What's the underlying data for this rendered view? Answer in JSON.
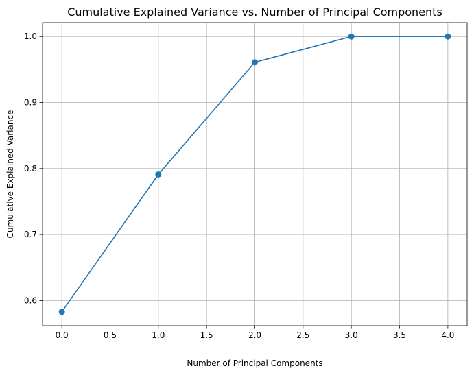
{
  "chart_data": {
    "type": "line",
    "title": "Cumulative Explained Variance vs. Number of Principal Components",
    "xlabel": "Number of Principal Components",
    "ylabel": "Cumulative Explained Variance",
    "x": [
      0,
      1,
      2,
      3,
      4
    ],
    "series": [
      {
        "values": [
          0.583,
          0.791,
          0.961,
          1.0,
          1.0
        ],
        "color": "#1f77b4",
        "marker": "circle"
      }
    ],
    "xlim": [
      -0.2,
      4.2
    ],
    "ylim": [
      0.562,
      1.021
    ],
    "xticks": [
      0.0,
      0.5,
      1.0,
      1.5,
      2.0,
      2.5,
      3.0,
      3.5,
      4.0
    ],
    "xtick_labels": [
      "0.0",
      "0.5",
      "1.0",
      "1.5",
      "2.0",
      "2.5",
      "3.0",
      "3.5",
      "4.0"
    ],
    "yticks": [
      0.6,
      0.7,
      0.8,
      0.9,
      1.0
    ],
    "ytick_labels": [
      "0.6",
      "0.7",
      "0.8",
      "0.9",
      "1.0"
    ],
    "grid": true,
    "colors": {
      "line": "#1f77b4",
      "grid": "#b0b0b0",
      "axes": "#000000"
    }
  }
}
